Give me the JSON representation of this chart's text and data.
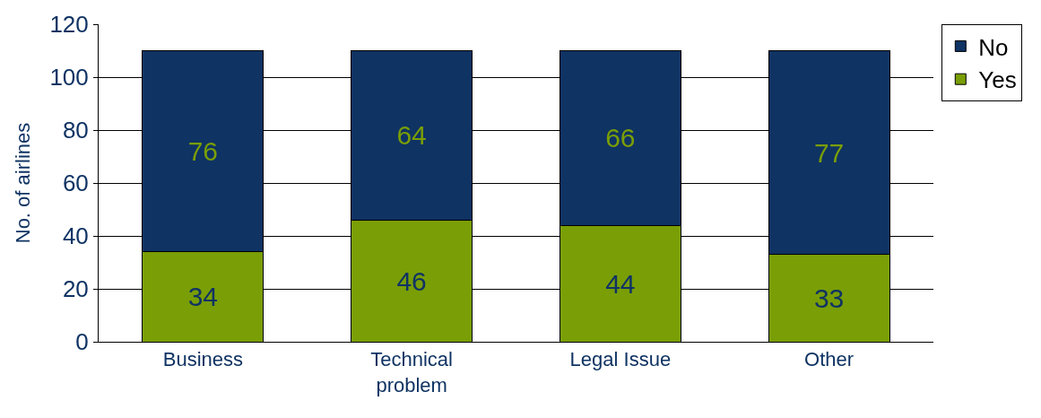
{
  "chart_data": {
    "type": "bar",
    "stacked": true,
    "ylabel": "No. of airlines",
    "categories": [
      "Business",
      "Technical problem",
      "Legal Issue",
      "Other"
    ],
    "series": [
      {
        "name": "Yes",
        "color": "#7a9e06",
        "values": [
          34,
          46,
          44,
          33
        ]
      },
      {
        "name": "No",
        "color": "#0f3363",
        "values": [
          76,
          64,
          66,
          77
        ]
      }
    ],
    "ylim": [
      0,
      120
    ],
    "yticks": [
      0,
      20,
      40,
      60,
      80,
      100,
      120
    ],
    "grid": "y",
    "legend": "top right",
    "data_labels": true
  }
}
